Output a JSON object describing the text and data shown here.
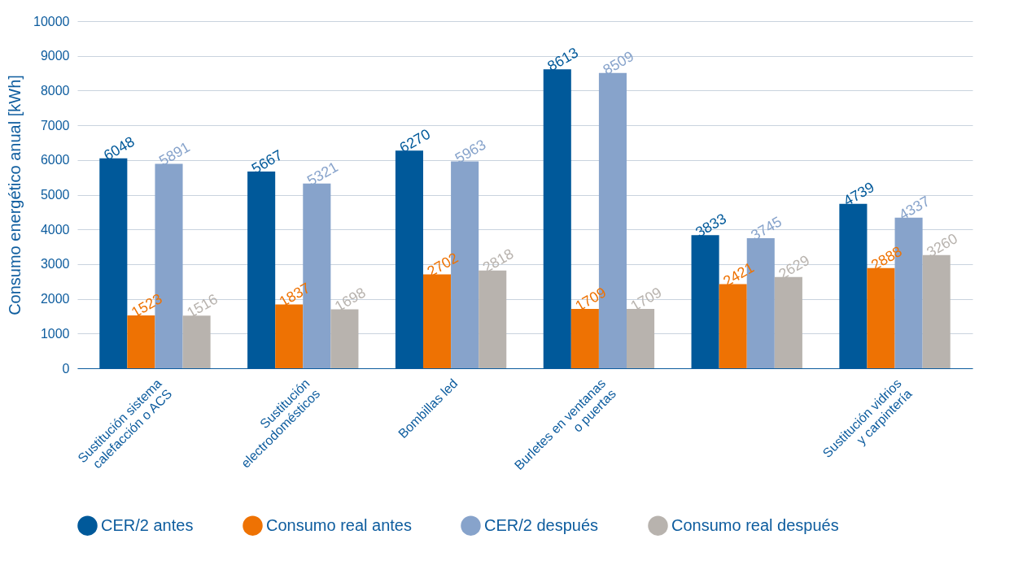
{
  "chart_data": {
    "type": "bar",
    "ylabel": "Consumo energético anual [kWh]",
    "categories": [
      "Sustitución sistema calefacción o ACS",
      "Sustitución electrodomésticos",
      "Bombillas led",
      "Burletes en ventanas o puertas",
      null,
      "Sustitución vidrios y carpintería"
    ],
    "series": [
      {
        "name": "CER/2 antes",
        "color": "#00599a",
        "values": [
          6048,
          5667,
          6270,
          8613,
          3833,
          4739
        ]
      },
      {
        "name": "Consumo real antes",
        "color": "#ee7203",
        "values": [
          1523,
          1837,
          2702,
          1709,
          2421,
          2888
        ]
      },
      {
        "name": "CER/2 después",
        "color": "#87a3cb",
        "values": [
          5891,
          5321,
          5963,
          8509,
          3745,
          4337
        ]
      },
      {
        "name": "Consumo real después",
        "color": "#b8b3ae",
        "values": [
          1516,
          1698,
          2818,
          1709,
          2629,
          3260
        ]
      }
    ],
    "ylim": [
      0,
      10000
    ],
    "yticks": [
      0,
      1000,
      2000,
      3000,
      4000,
      5000,
      6000,
      7000,
      8000,
      9000,
      10000
    ],
    "grid": "y",
    "data_labels": true,
    "legend": "bottom"
  }
}
